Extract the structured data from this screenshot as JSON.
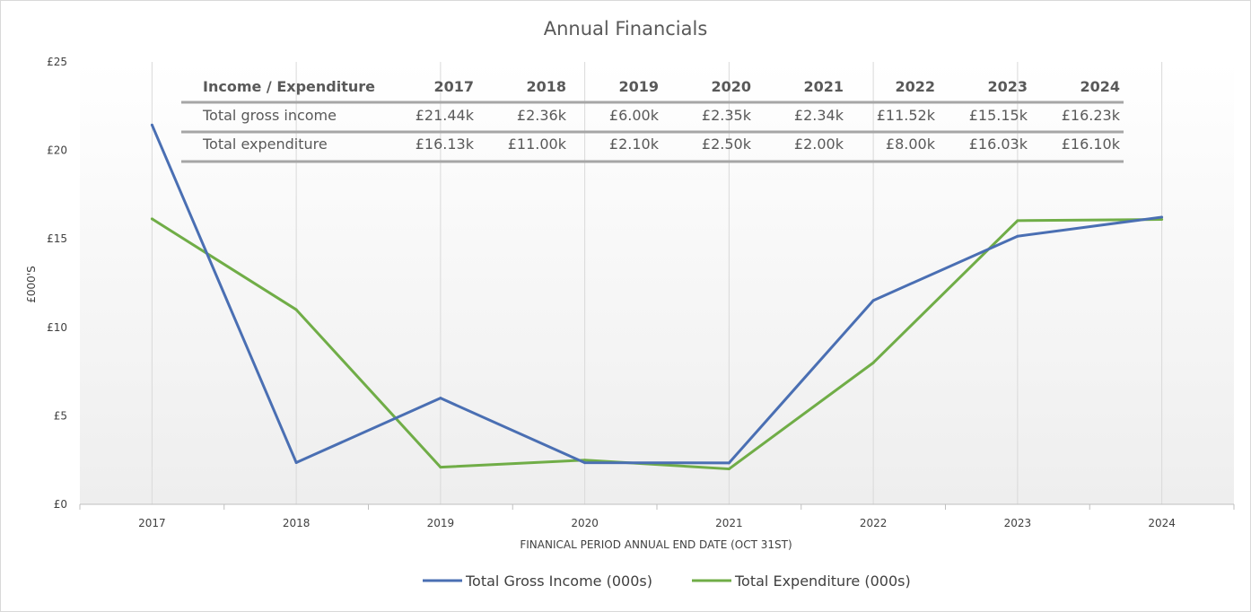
{
  "chart_data": {
    "type": "line",
    "title": "Annual Financials",
    "xlabel": "FINANICAL PERIOD ANNUAL END DATE (OCT 31ST)",
    "ylabel": "£000'S",
    "ylim": [
      0,
      25
    ],
    "yticks": [
      "£0",
      "£5",
      "£10",
      "£15",
      "£20",
      "£25"
    ],
    "ytick_values": [
      0,
      5,
      10,
      15,
      20,
      25
    ],
    "categories": [
      "2017",
      "2018",
      "2019",
      "2020",
      "2021",
      "2022",
      "2023",
      "2024"
    ],
    "series": [
      {
        "name": "Total Gross Income (000s)",
        "color": "#4a6fb3",
        "values": [
          21.44,
          2.36,
          6.0,
          2.35,
          2.34,
          11.52,
          15.15,
          16.23
        ]
      },
      {
        "name": "Total Expenditure (000s)",
        "color": "#70ad47",
        "values": [
          16.13,
          11.0,
          2.1,
          2.5,
          2.0,
          8.0,
          16.03,
          16.1
        ]
      }
    ],
    "grid": "vertical",
    "legend": "bottom",
    "table": {
      "header": [
        "Income / Expenditure",
        "2017",
        "2018",
        "2019",
        "2020",
        "2021",
        "2022",
        "2023",
        "2024"
      ],
      "rows": [
        [
          "Total gross income",
          "£21.44k",
          "£2.36k",
          "£6.00k",
          "£2.35k",
          "£2.34k",
          "£11.52k",
          "£15.15k",
          "£16.23k"
        ],
        [
          "Total expenditure",
          "£16.13k",
          "£11.00k",
          "£2.10k",
          "£2.50k",
          "£2.00k",
          "£8.00k",
          "£16.03k",
          "£16.10k"
        ]
      ]
    }
  }
}
